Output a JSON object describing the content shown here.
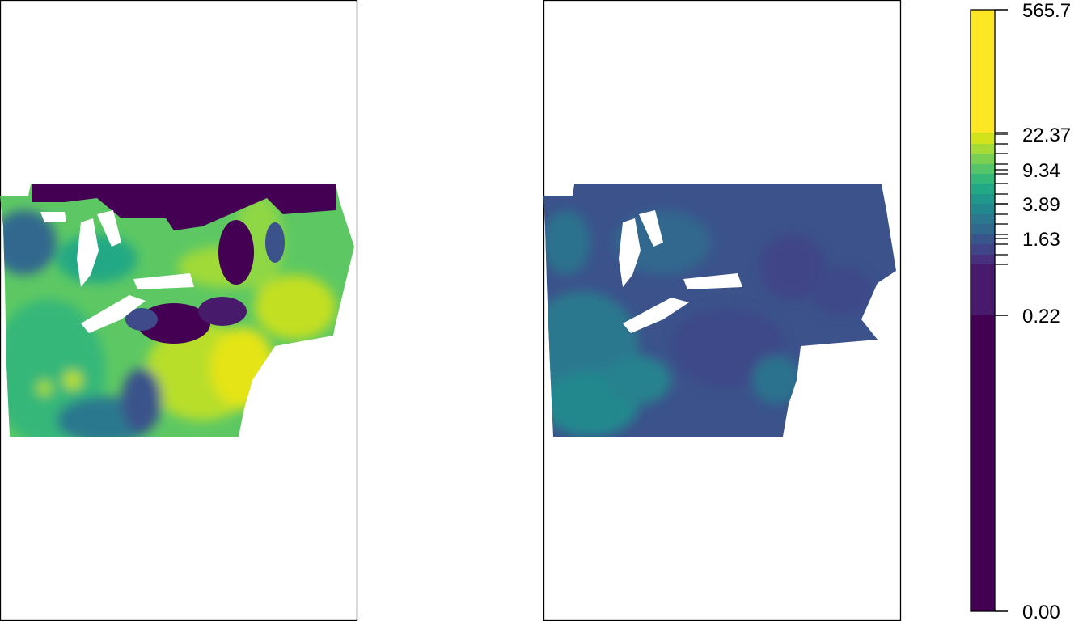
{
  "chart_data": {
    "type": "heatmap",
    "panels": [
      {
        "name": "",
        "palette_level": "high"
      },
      {
        "name": "",
        "palette_level": "low"
      }
    ],
    "legend": {
      "placement": "right",
      "palette": "viridis",
      "colors": [
        "#440154",
        "#481A6C",
        "#472F7D",
        "#414487",
        "#39568C",
        "#31688E",
        "#2A788E",
        "#23888E",
        "#1F988B",
        "#22A884",
        "#35B779",
        "#54C568",
        "#7AD151",
        "#A5DB36",
        "#D2E21B",
        "#FDE725"
      ],
      "scale": "nonlinear",
      "min": 0.0,
      "max": 565.7,
      "ticks": [
        {
          "label": "565.7",
          "value": 565.7
        },
        {
          "label": "22.37",
          "value": 22.37
        },
        {
          "label": "9.34",
          "value": 9.34
        },
        {
          "label": "3.89",
          "value": 3.89
        },
        {
          "label": "1.63",
          "value": 1.63
        },
        {
          "label": "0.22",
          "value": 0.22
        },
        {
          "label": "0.00",
          "value": 0.0
        }
      ]
    }
  }
}
